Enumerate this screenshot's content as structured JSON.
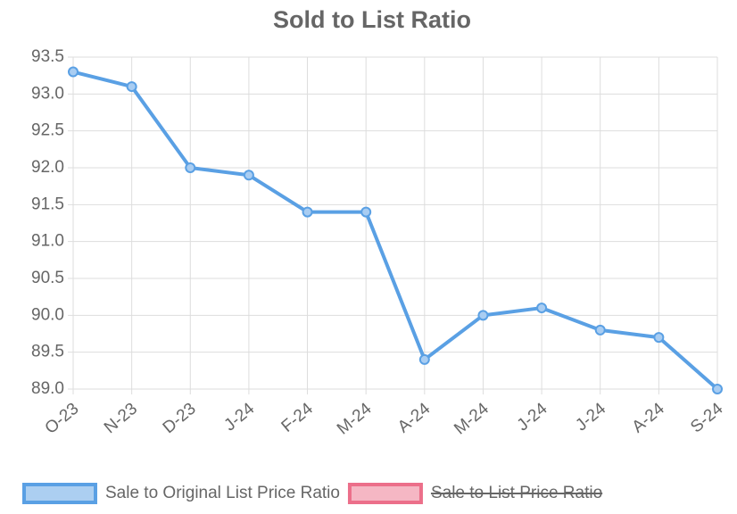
{
  "chart_data": {
    "type": "line",
    "title": "Sold to List Ratio",
    "categories": [
      "O-23",
      "N-23",
      "D-23",
      "J-24",
      "F-24",
      "M-24",
      "A-24",
      "M-24",
      "J-24",
      "J-24",
      "A-24",
      "S-24"
    ],
    "series": [
      {
        "name": "Sale to Original List Price Ratio",
        "color": "#5aa0e4",
        "values": [
          93.3,
          93.1,
          92.0,
          91.9,
          91.4,
          91.4,
          89.4,
          90.0,
          90.1,
          89.8,
          89.7,
          89.0
        ]
      },
      {
        "name": "Sale to List Price Ratio",
        "color": "#ec6f8a",
        "hidden": true,
        "values": [
          null,
          null,
          null,
          null,
          null,
          null,
          null,
          null,
          null,
          null,
          null,
          null
        ]
      }
    ],
    "ylim": [
      89,
      93.5
    ],
    "yticks": [
      {
        "value": 89,
        "label": "89.0"
      },
      89.5,
      {
        "value": 90,
        "label": "90.0"
      },
      90.5,
      {
        "value": 91,
        "label": "91.0"
      },
      91.5,
      {
        "value": 92,
        "label": "92.0"
      },
      92.5,
      {
        "value": 93,
        "label": "93.0"
      },
      93.5
    ],
    "grid": true,
    "legend": "bottom"
  }
}
